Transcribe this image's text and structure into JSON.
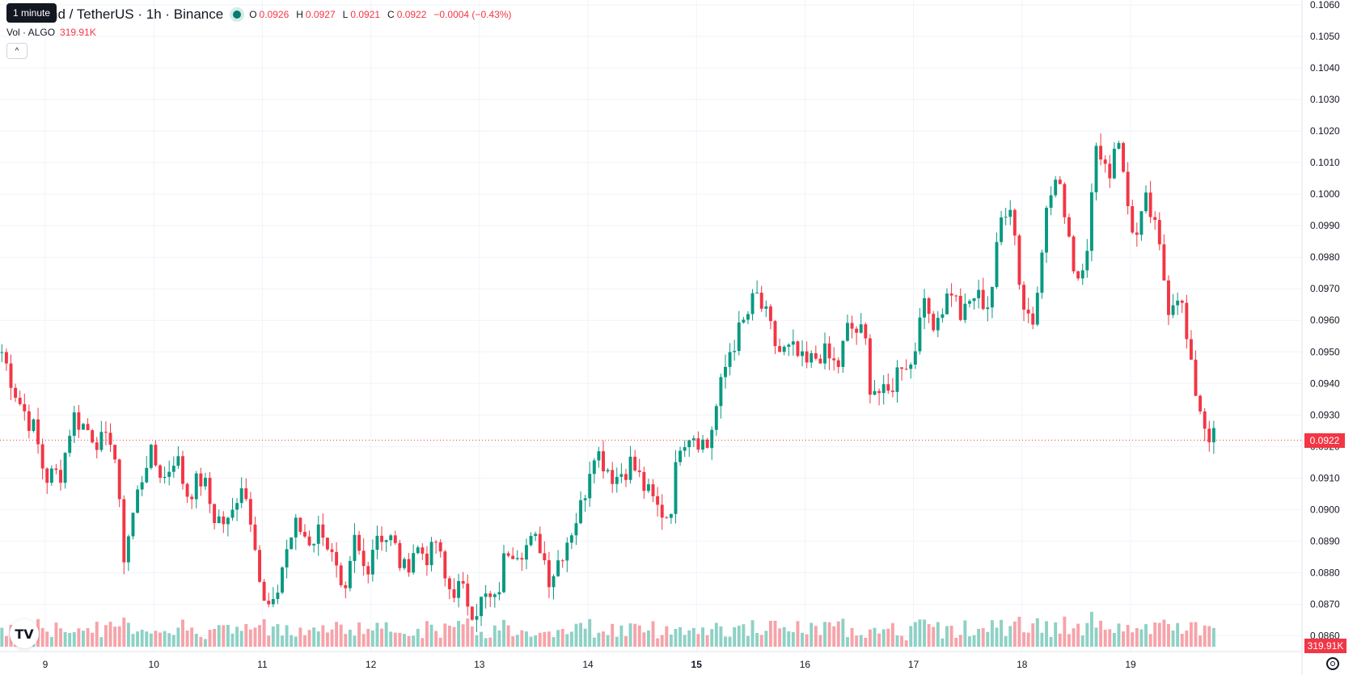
{
  "legend": {
    "symbol": "nd / TetherUS · 1h · Binance",
    "ohlc": [
      {
        "key": "O",
        "value": "0.0926"
      },
      {
        "key": "H",
        "value": "0.0927"
      },
      {
        "key": "L",
        "value": "0.0921"
      },
      {
        "key": "C",
        "value": "0.0922"
      }
    ],
    "change": "−0.0004 (−0.43%)"
  },
  "tooltip": "1 minute",
  "volume_legend": {
    "label": "Vol · ALGO",
    "value": "319.91K"
  },
  "last_price_label": "0.0922",
  "last_volume_label": "319.91K",
  "colors": {
    "up": "#089981",
    "down": "#f23645",
    "up_volume": "#8ed1c5",
    "down_volume": "#f6a3a9",
    "grid": "#f0f3fa"
  },
  "icons": {
    "collapse": "chevron-up-icon",
    "logo": "tradingview-logo-icon",
    "settings": "settings-icon"
  },
  "chart_data": {
    "type": "candlestick",
    "interval": "1h",
    "y_ticks": [
      "0.1060",
      "0.1050",
      "0.1040",
      "0.1030",
      "0.1020",
      "0.1010",
      "0.1000",
      "0.0990",
      "0.0980",
      "0.0970",
      "0.0960",
      "0.0950",
      "0.0940",
      "0.0930",
      "0.0920",
      "0.0910",
      "0.0900",
      "0.0890",
      "0.0880",
      "0.0870",
      "0.0860"
    ],
    "x_ticks": [
      "9",
      "10",
      "11",
      "12",
      "13",
      "14",
      "15",
      "16",
      "17",
      "18",
      "19"
    ],
    "ylim": [
      0.0855,
      0.106
    ],
    "x_days": [
      9,
      19.4
    ],
    "anchors": [
      [
        8.6,
        0.095
      ],
      [
        8.75,
        0.0935
      ],
      [
        8.9,
        0.0925
      ],
      [
        9.0,
        0.091
      ],
      [
        9.15,
        0.0912
      ],
      [
        9.25,
        0.093
      ],
      [
        9.4,
        0.0925
      ],
      [
        9.55,
        0.092
      ],
      [
        9.62,
        0.0925
      ],
      [
        9.72,
        0.0885
      ],
      [
        9.85,
        0.0905
      ],
      [
        9.95,
        0.0918
      ],
      [
        10.1,
        0.091
      ],
      [
        10.2,
        0.0918
      ],
      [
        10.3,
        0.0905
      ],
      [
        10.45,
        0.091
      ],
      [
        10.55,
        0.0898
      ],
      [
        10.7,
        0.0895
      ],
      [
        10.8,
        0.091
      ],
      [
        10.92,
        0.0895
      ],
      [
        11.0,
        0.087
      ],
      [
        11.1,
        0.0868
      ],
      [
        11.2,
        0.0885
      ],
      [
        11.3,
        0.0895
      ],
      [
        11.45,
        0.089
      ],
      [
        11.55,
        0.0895
      ],
      [
        11.68,
        0.088
      ],
      [
        11.75,
        0.0868
      ],
      [
        11.85,
        0.089
      ],
      [
        11.95,
        0.088
      ],
      [
        12.05,
        0.0893
      ],
      [
        12.2,
        0.089
      ],
      [
        12.3,
        0.088
      ],
      [
        12.4,
        0.0888
      ],
      [
        12.55,
        0.0885
      ],
      [
        12.6,
        0.089
      ],
      [
        12.7,
        0.0875
      ],
      [
        12.82,
        0.0875
      ],
      [
        12.95,
        0.0868
      ],
      [
        13.05,
        0.0872
      ],
      [
        13.15,
        0.087
      ],
      [
        13.25,
        0.0888
      ],
      [
        13.4,
        0.0888
      ],
      [
        13.55,
        0.089
      ],
      [
        13.65,
        0.0878
      ],
      [
        13.8,
        0.089
      ],
      [
        13.95,
        0.0902
      ],
      [
        14.05,
        0.092
      ],
      [
        14.15,
        0.0915
      ],
      [
        14.25,
        0.091
      ],
      [
        14.4,
        0.0915
      ],
      [
        14.55,
        0.0905
      ],
      [
        14.65,
        0.09
      ],
      [
        14.75,
        0.0898
      ],
      [
        14.85,
        0.0922
      ],
      [
        14.95,
        0.0925
      ],
      [
        15.1,
        0.092
      ],
      [
        15.2,
        0.0935
      ],
      [
        15.3,
        0.095
      ],
      [
        15.45,
        0.096
      ],
      [
        15.55,
        0.0968
      ],
      [
        15.65,
        0.096
      ],
      [
        15.75,
        0.095
      ],
      [
        15.9,
        0.095
      ],
      [
        16.0,
        0.0945
      ],
      [
        16.15,
        0.095
      ],
      [
        16.3,
        0.0945
      ],
      [
        16.4,
        0.0958
      ],
      [
        16.55,
        0.0955
      ],
      [
        16.6,
        0.094
      ],
      [
        16.75,
        0.0935
      ],
      [
        16.9,
        0.0948
      ],
      [
        17.0,
        0.0945
      ],
      [
        17.05,
        0.0965
      ],
      [
        17.2,
        0.096
      ],
      [
        17.35,
        0.097
      ],
      [
        17.45,
        0.096
      ],
      [
        17.55,
        0.0968
      ],
      [
        17.7,
        0.0965
      ],
      [
        17.82,
        0.0995
      ],
      [
        17.9,
        0.0998
      ],
      [
        18.0,
        0.0965
      ],
      [
        18.1,
        0.096
      ],
      [
        18.2,
        0.099
      ],
      [
        18.3,
        0.1005
      ],
      [
        18.4,
        0.0995
      ],
      [
        18.5,
        0.0972
      ],
      [
        18.6,
        0.0985
      ],
      [
        18.7,
        0.1018
      ],
      [
        18.8,
        0.1005
      ],
      [
        18.88,
        0.1022
      ],
      [
        18.95,
        0.1
      ],
      [
        19.05,
        0.0985
      ],
      [
        19.15,
        0.0998
      ],
      [
        19.25,
        0.0985
      ],
      [
        19.35,
        0.0965
      ],
      [
        19.45,
        0.097
      ],
      [
        19.55,
        0.0945
      ],
      [
        19.62,
        0.0935
      ],
      [
        19.7,
        0.0925
      ],
      [
        19.78,
        0.0922
      ]
    ],
    "volume_max": 800000
  }
}
